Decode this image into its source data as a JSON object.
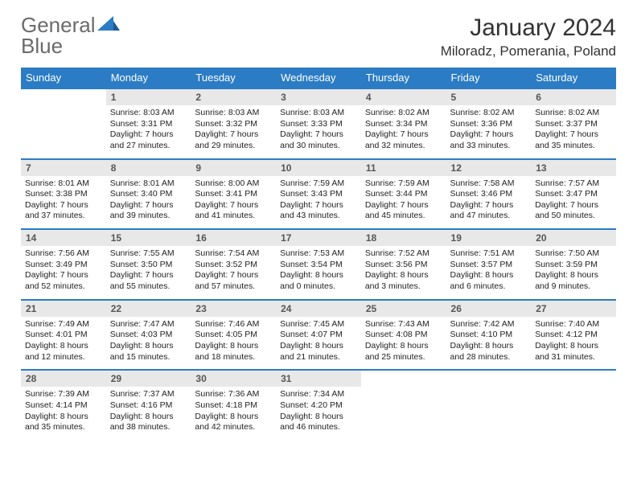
{
  "logo": {
    "line1": "General",
    "line2": "Blue"
  },
  "title": "January 2024",
  "location": "Miloradz, Pomerania, Poland",
  "colors": {
    "accent": "#2b7cc4",
    "header_bg": "#2b7cc4",
    "header_text": "#ffffff",
    "daynum_bg": "#e8e8e8",
    "daynum_text": "#555555",
    "body_text": "#222222",
    "logo_gray": "#6b6b6b"
  },
  "days_of_week": [
    "Sunday",
    "Monday",
    "Tuesday",
    "Wednesday",
    "Thursday",
    "Friday",
    "Saturday"
  ],
  "weeks": [
    [
      {
        "n": "",
        "sun": "",
        "set": "",
        "day": ""
      },
      {
        "n": "1",
        "sun": "Sunrise: 8:03 AM",
        "set": "Sunset: 3:31 PM",
        "day": "Daylight: 7 hours and 27 minutes."
      },
      {
        "n": "2",
        "sun": "Sunrise: 8:03 AM",
        "set": "Sunset: 3:32 PM",
        "day": "Daylight: 7 hours and 29 minutes."
      },
      {
        "n": "3",
        "sun": "Sunrise: 8:03 AM",
        "set": "Sunset: 3:33 PM",
        "day": "Daylight: 7 hours and 30 minutes."
      },
      {
        "n": "4",
        "sun": "Sunrise: 8:02 AM",
        "set": "Sunset: 3:34 PM",
        "day": "Daylight: 7 hours and 32 minutes."
      },
      {
        "n": "5",
        "sun": "Sunrise: 8:02 AM",
        "set": "Sunset: 3:36 PM",
        "day": "Daylight: 7 hours and 33 minutes."
      },
      {
        "n": "6",
        "sun": "Sunrise: 8:02 AM",
        "set": "Sunset: 3:37 PM",
        "day": "Daylight: 7 hours and 35 minutes."
      }
    ],
    [
      {
        "n": "7",
        "sun": "Sunrise: 8:01 AM",
        "set": "Sunset: 3:38 PM",
        "day": "Daylight: 7 hours and 37 minutes."
      },
      {
        "n": "8",
        "sun": "Sunrise: 8:01 AM",
        "set": "Sunset: 3:40 PM",
        "day": "Daylight: 7 hours and 39 minutes."
      },
      {
        "n": "9",
        "sun": "Sunrise: 8:00 AM",
        "set": "Sunset: 3:41 PM",
        "day": "Daylight: 7 hours and 41 minutes."
      },
      {
        "n": "10",
        "sun": "Sunrise: 7:59 AM",
        "set": "Sunset: 3:43 PM",
        "day": "Daylight: 7 hours and 43 minutes."
      },
      {
        "n": "11",
        "sun": "Sunrise: 7:59 AM",
        "set": "Sunset: 3:44 PM",
        "day": "Daylight: 7 hours and 45 minutes."
      },
      {
        "n": "12",
        "sun": "Sunrise: 7:58 AM",
        "set": "Sunset: 3:46 PM",
        "day": "Daylight: 7 hours and 47 minutes."
      },
      {
        "n": "13",
        "sun": "Sunrise: 7:57 AM",
        "set": "Sunset: 3:47 PM",
        "day": "Daylight: 7 hours and 50 minutes."
      }
    ],
    [
      {
        "n": "14",
        "sun": "Sunrise: 7:56 AM",
        "set": "Sunset: 3:49 PM",
        "day": "Daylight: 7 hours and 52 minutes."
      },
      {
        "n": "15",
        "sun": "Sunrise: 7:55 AM",
        "set": "Sunset: 3:50 PM",
        "day": "Daylight: 7 hours and 55 minutes."
      },
      {
        "n": "16",
        "sun": "Sunrise: 7:54 AM",
        "set": "Sunset: 3:52 PM",
        "day": "Daylight: 7 hours and 57 minutes."
      },
      {
        "n": "17",
        "sun": "Sunrise: 7:53 AM",
        "set": "Sunset: 3:54 PM",
        "day": "Daylight: 8 hours and 0 minutes."
      },
      {
        "n": "18",
        "sun": "Sunrise: 7:52 AM",
        "set": "Sunset: 3:56 PM",
        "day": "Daylight: 8 hours and 3 minutes."
      },
      {
        "n": "19",
        "sun": "Sunrise: 7:51 AM",
        "set": "Sunset: 3:57 PM",
        "day": "Daylight: 8 hours and 6 minutes."
      },
      {
        "n": "20",
        "sun": "Sunrise: 7:50 AM",
        "set": "Sunset: 3:59 PM",
        "day": "Daylight: 8 hours and 9 minutes."
      }
    ],
    [
      {
        "n": "21",
        "sun": "Sunrise: 7:49 AM",
        "set": "Sunset: 4:01 PM",
        "day": "Daylight: 8 hours and 12 minutes."
      },
      {
        "n": "22",
        "sun": "Sunrise: 7:47 AM",
        "set": "Sunset: 4:03 PM",
        "day": "Daylight: 8 hours and 15 minutes."
      },
      {
        "n": "23",
        "sun": "Sunrise: 7:46 AM",
        "set": "Sunset: 4:05 PM",
        "day": "Daylight: 8 hours and 18 minutes."
      },
      {
        "n": "24",
        "sun": "Sunrise: 7:45 AM",
        "set": "Sunset: 4:07 PM",
        "day": "Daylight: 8 hours and 21 minutes."
      },
      {
        "n": "25",
        "sun": "Sunrise: 7:43 AM",
        "set": "Sunset: 4:08 PM",
        "day": "Daylight: 8 hours and 25 minutes."
      },
      {
        "n": "26",
        "sun": "Sunrise: 7:42 AM",
        "set": "Sunset: 4:10 PM",
        "day": "Daylight: 8 hours and 28 minutes."
      },
      {
        "n": "27",
        "sun": "Sunrise: 7:40 AM",
        "set": "Sunset: 4:12 PM",
        "day": "Daylight: 8 hours and 31 minutes."
      }
    ],
    [
      {
        "n": "28",
        "sun": "Sunrise: 7:39 AM",
        "set": "Sunset: 4:14 PM",
        "day": "Daylight: 8 hours and 35 minutes."
      },
      {
        "n": "29",
        "sun": "Sunrise: 7:37 AM",
        "set": "Sunset: 4:16 PM",
        "day": "Daylight: 8 hours and 38 minutes."
      },
      {
        "n": "30",
        "sun": "Sunrise: 7:36 AM",
        "set": "Sunset: 4:18 PM",
        "day": "Daylight: 8 hours and 42 minutes."
      },
      {
        "n": "31",
        "sun": "Sunrise: 7:34 AM",
        "set": "Sunset: 4:20 PM",
        "day": "Daylight: 8 hours and 46 minutes."
      },
      {
        "n": "",
        "sun": "",
        "set": "",
        "day": ""
      },
      {
        "n": "",
        "sun": "",
        "set": "",
        "day": ""
      },
      {
        "n": "",
        "sun": "",
        "set": "",
        "day": ""
      }
    ]
  ]
}
